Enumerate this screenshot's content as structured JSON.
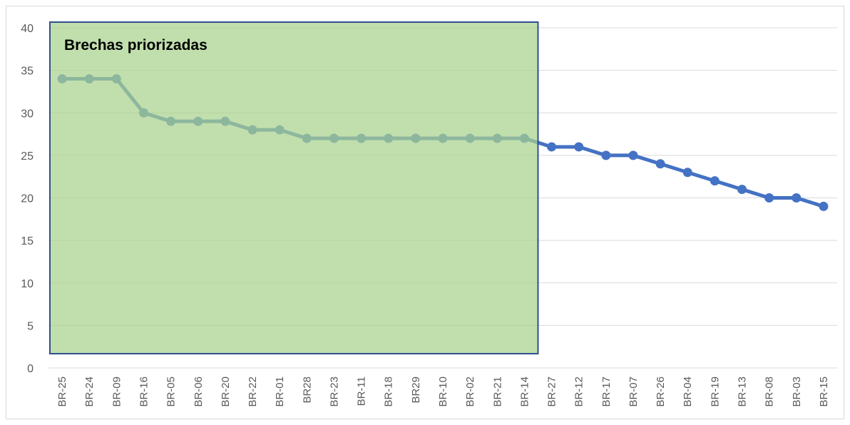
{
  "chart_data": {
    "type": "line",
    "categories": [
      "BR-25",
      "BR-24",
      "BR-09",
      "BR-16",
      "BR-05",
      "BR-06",
      "BR-20",
      "BR-22",
      "BR-01",
      "BR28",
      "BR-23",
      "BR-11",
      "BR-18",
      "BR29",
      "BR-10",
      "BR-02",
      "BR-21",
      "BR-14",
      "BR-27",
      "BR-12",
      "BR-17",
      "BR-07",
      "BR-26",
      "BR-04",
      "BR-19",
      "BR-13",
      "BR-08",
      "BR-03",
      "BR-15"
    ],
    "series": [
      {
        "values": [
          34,
          34,
          34,
          30,
          29,
          29,
          29,
          28,
          28,
          27,
          27,
          27,
          27,
          27,
          27,
          27,
          27,
          27,
          26,
          26,
          25,
          25,
          24,
          23,
          22,
          21,
          20,
          20,
          19
        ]
      }
    ],
    "title": "",
    "xlabel": "",
    "ylabel": "",
    "ylim": [
      0,
      40
    ],
    "yticks": [
      0,
      5,
      10,
      15,
      20,
      25,
      30,
      35,
      40
    ],
    "grid": true,
    "legend": "none",
    "highlight": {
      "label": "Brechas priorizadas",
      "from_category": "BR-25",
      "to_category": "BR-14"
    }
  },
  "colors": {
    "line": "#4472c4",
    "highlight_fill": "#a9d18e",
    "highlight_border": "#2f4f8f",
    "highlight_fill_opacity": 0.72,
    "grid": "#d9d9d9"
  }
}
